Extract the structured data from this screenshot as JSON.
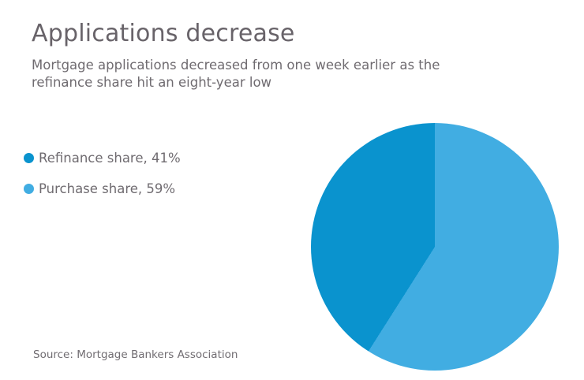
{
  "header": {
    "title": "Applications decrease",
    "subtitle_lines": [
      "Mortgage applications decreased from one week earlier as the",
      "refinance share hit an eight-year low"
    ]
  },
  "legend": {
    "items": [
      {
        "label": "Refinance share, 41%",
        "color": "#0a93ce"
      },
      {
        "label": "Purchase share, 59%",
        "color": "#41ade2"
      }
    ]
  },
  "source": {
    "text": "Source: Mortgage Bankers Association"
  },
  "colors": {
    "refinance_blue": "#0a93ce",
    "purchase_blue": "#41ade2",
    "title_gray": "#686369",
    "text_gray": "#6f6b70"
  },
  "chart_data": {
    "type": "pie",
    "title": "Applications decrease",
    "subtitle": "Mortgage applications decreased from one week earlier as the refinance share hit an eight-year low",
    "slices": [
      {
        "label": "Purchase share",
        "value": 59,
        "unit": "%",
        "color": "#41ade2"
      },
      {
        "label": "Refinance share",
        "value": 41,
        "unit": "%",
        "color": "#0a93ce"
      }
    ],
    "start_angle_deg": 0,
    "direction": "clockwise",
    "legend_position": "left",
    "legend_order": [
      "Refinance share, 41%",
      "Purchase share, 59%"
    ],
    "source": "Mortgage Bankers Association"
  }
}
